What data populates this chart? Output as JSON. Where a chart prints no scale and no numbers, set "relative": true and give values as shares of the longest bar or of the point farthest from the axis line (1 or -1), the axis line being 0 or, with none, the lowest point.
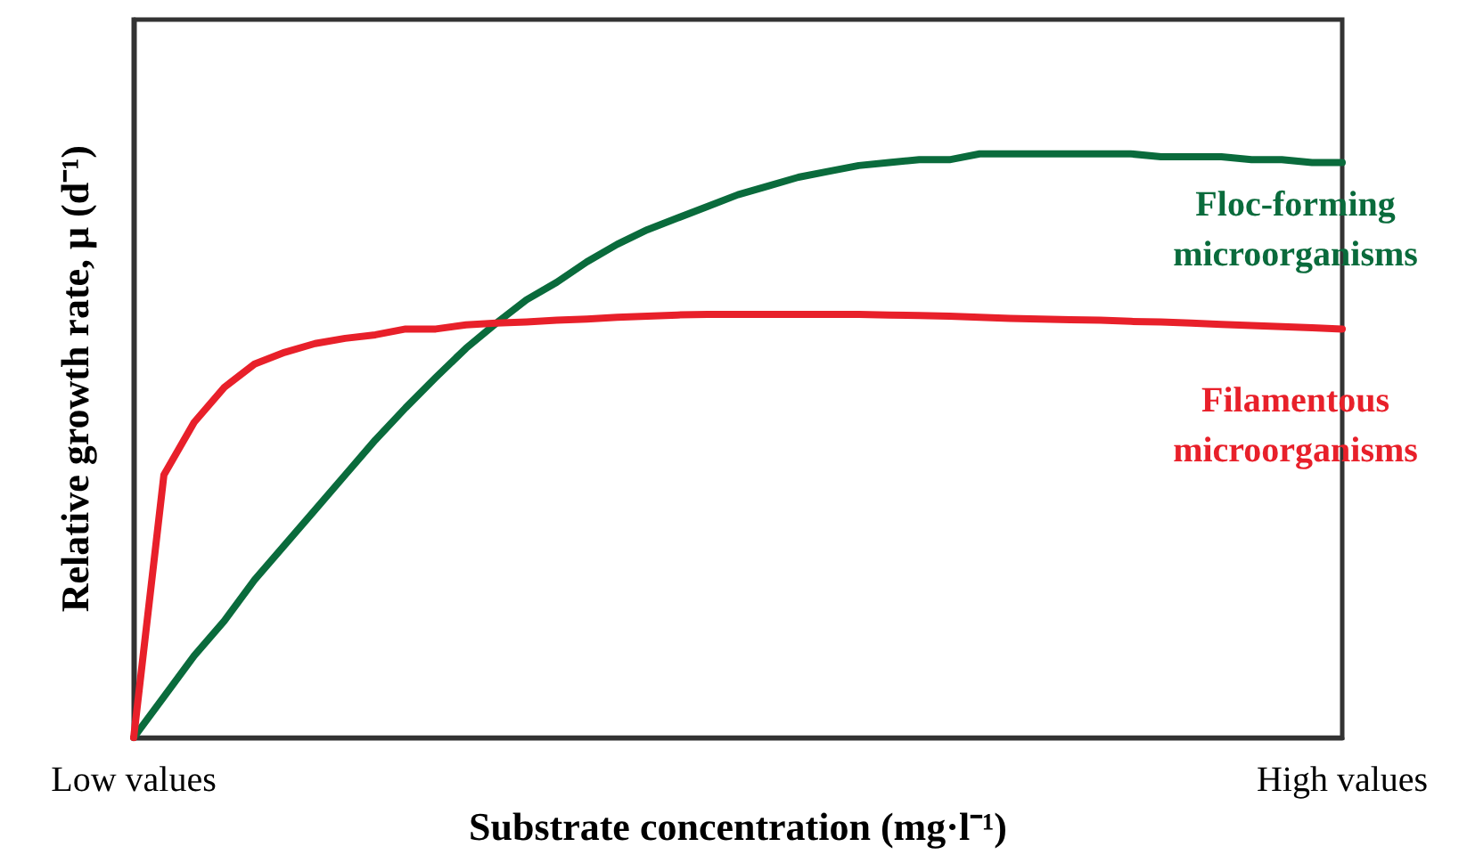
{
  "chart_data": {
    "type": "line",
    "relative": true,
    "xlabel": "Substrate concentration (mg·l⁻¹)",
    "ylabel": "Relative growth rate, μ (d⁻¹)",
    "categories": [
      "Low values",
      null,
      null,
      null,
      null,
      null,
      null,
      null,
      null,
      null,
      null,
      null,
      null,
      null,
      null,
      null,
      null,
      null,
      null,
      null,
      null,
      null,
      null,
      null,
      null,
      null,
      null,
      null,
      null,
      null,
      null,
      null,
      null,
      null,
      null,
      null,
      null,
      null,
      null,
      null,
      "High values"
    ],
    "series": [
      {
        "name": "Floc-forming microorganisms",
        "color": "#0a6b3c",
        "values": [
          0,
          0.07,
          0.14,
          0.2,
          0.27,
          0.33,
          0.39,
          0.45,
          0.51,
          0.565,
          0.617,
          0.667,
          0.71,
          0.75,
          0.78,
          0.815,
          0.845,
          0.87,
          0.89,
          0.91,
          0.93,
          0.945,
          0.96,
          0.97,
          0.98,
          0.985,
          0.99,
          0.99,
          1,
          1,
          1,
          1,
          1,
          1,
          0.995,
          0.995,
          0.995,
          0.99,
          0.99,
          0.985,
          0.985
        ]
      },
      {
        "name": "Filamentous microorganisms",
        "color": "#e8202a",
        "values": [
          0,
          0.45,
          0.54,
          0.6,
          0.64,
          0.66,
          0.675,
          0.684,
          0.69,
          0.7,
          0.7,
          0.707,
          0.71,
          0.712,
          0.715,
          0.717,
          0.72,
          0.722,
          0.724,
          0.725,
          0.725,
          0.725,
          0.725,
          0.725,
          0.725,
          0.724,
          0.723,
          0.722,
          0.72,
          0.718,
          0.717,
          0.716,
          0.715,
          0.713,
          0.712,
          0.71,
          0.708,
          0.706,
          0.704,
          0.702,
          0.7
        ]
      }
    ],
    "grid": false,
    "legend": false,
    "marker": "none",
    "line_style": "solid"
  }
}
